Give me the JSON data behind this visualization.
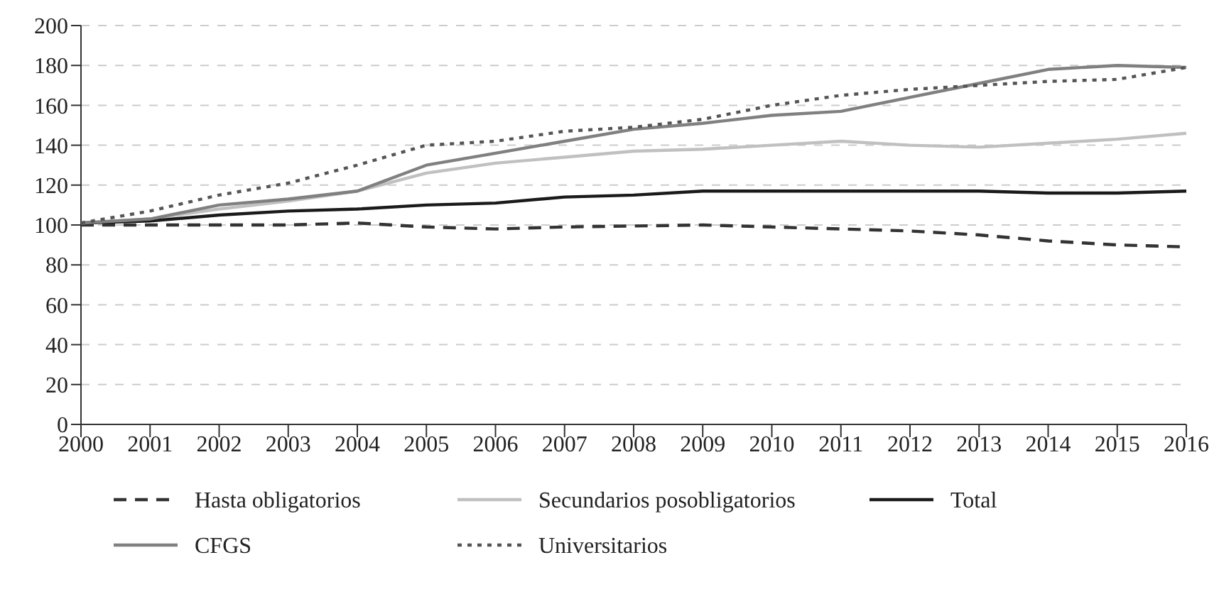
{
  "chart_data": {
    "type": "line",
    "categories": [
      "2000",
      "2001",
      "2002",
      "2003",
      "2004",
      "2005",
      "2006",
      "2007",
      "2008",
      "2009",
      "2010",
      "2011",
      "2012",
      "2013",
      "2014",
      "2015",
      "2016"
    ],
    "ylim": [
      0,
      200
    ],
    "yticks": [
      0,
      20,
      40,
      60,
      80,
      100,
      120,
      140,
      160,
      180,
      200
    ],
    "grid": "y",
    "legend": "bottom",
    "series": [
      {
        "name": "Hasta obligatorios",
        "color": "#333333",
        "line_style": "dashed",
        "values": [
          100,
          100,
          100,
          100,
          101,
          99,
          98,
          99,
          99.5,
          100,
          99,
          98,
          97,
          95,
          92,
          90,
          89
        ]
      },
      {
        "name": "Secundarios posobligatorios",
        "color": "#c0c0c0",
        "line_style": "solid",
        "values": [
          101,
          103,
          108,
          112,
          117,
          126,
          131,
          134,
          137,
          138,
          140,
          142,
          140,
          139,
          141,
          143,
          146
        ]
      },
      {
        "name": "Total",
        "color": "#1a1a1a",
        "line_style": "solid",
        "values": [
          101,
          102,
          105,
          107,
          108,
          110,
          111,
          114,
          115,
          117,
          117,
          117,
          117,
          117,
          116,
          116,
          117
        ]
      },
      {
        "name": "CFGS",
        "color": "#808080",
        "line_style": "solid",
        "values": [
          101,
          103,
          110,
          113,
          117,
          130,
          136,
          142,
          148,
          151,
          155,
          157,
          164,
          171,
          178,
          180,
          179
        ]
      },
      {
        "name": "Universitarios",
        "color": "#555555",
        "line_style": "dotted",
        "values": [
          101,
          107,
          115,
          121,
          130,
          140,
          142,
          147,
          149,
          153,
          160,
          165,
          168,
          170,
          172,
          173,
          179
        ]
      }
    ]
  }
}
